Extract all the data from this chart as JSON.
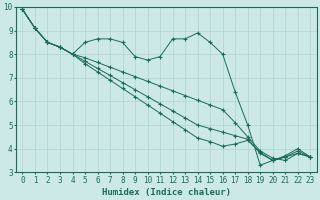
{
  "xlabel": "Humidex (Indice chaleur)",
  "background_color": "#cce9e8",
  "grid_color": "#aed4d2",
  "line_color": "#1a6b5a",
  "xlim": [
    -0.5,
    23.5
  ],
  "ylim": [
    3,
    10
  ],
  "yticks": [
    3,
    4,
    5,
    6,
    7,
    8,
    9,
    10
  ],
  "xticks": [
    0,
    1,
    2,
    3,
    4,
    5,
    6,
    7,
    8,
    9,
    10,
    11,
    12,
    13,
    14,
    15,
    16,
    17,
    18,
    19,
    20,
    21,
    22,
    23
  ],
  "lines": [
    {
      "x": [
        0,
        1,
        2,
        3,
        4,
        5,
        6,
        7,
        8,
        9,
        10,
        11,
        12,
        13,
        14,
        15,
        16,
        17,
        18,
        19,
        20,
        21,
        22,
        23
      ],
      "y": [
        9.9,
        9.1,
        8.5,
        8.3,
        8.0,
        8.5,
        8.65,
        8.65,
        8.5,
        7.9,
        7.75,
        7.9,
        8.65,
        8.65,
        8.9,
        8.5,
        8.0,
        6.4,
        5.0,
        3.3,
        3.5,
        3.7,
        4.0,
        3.65
      ]
    },
    {
      "x": [
        0,
        1,
        2,
        3,
        4,
        5,
        6,
        7,
        8,
        9,
        10,
        11,
        12,
        13,
        14,
        15,
        16,
        17,
        18,
        19,
        20,
        21,
        22,
        23
      ],
      "y": [
        9.9,
        9.1,
        8.5,
        8.3,
        8.0,
        7.85,
        7.65,
        7.45,
        7.25,
        7.05,
        6.85,
        6.65,
        6.45,
        6.25,
        6.05,
        5.85,
        5.65,
        5.1,
        4.5,
        3.9,
        3.6,
        3.5,
        3.8,
        3.65
      ]
    },
    {
      "x": [
        0,
        1,
        2,
        3,
        4,
        5,
        6,
        7,
        8,
        9,
        10,
        11,
        12,
        13,
        14,
        15,
        16,
        17,
        18,
        19,
        20,
        21,
        22,
        23
      ],
      "y": [
        9.9,
        9.1,
        8.5,
        8.3,
        8.0,
        7.7,
        7.4,
        7.1,
        6.8,
        6.5,
        6.2,
        5.9,
        5.6,
        5.3,
        5.0,
        4.85,
        4.7,
        4.55,
        4.4,
        3.8,
        3.5,
        3.65,
        3.8,
        3.65
      ]
    },
    {
      "x": [
        0,
        1,
        2,
        3,
        4,
        5,
        6,
        7,
        8,
        9,
        10,
        11,
        12,
        13,
        14,
        15,
        16,
        17,
        18,
        19,
        20,
        21,
        22,
        23
      ],
      "y": [
        9.9,
        9.1,
        8.5,
        8.3,
        8.0,
        7.6,
        7.25,
        6.9,
        6.55,
        6.2,
        5.85,
        5.5,
        5.15,
        4.8,
        4.45,
        4.3,
        4.1,
        4.2,
        4.35,
        3.85,
        3.5,
        3.65,
        3.9,
        3.65
      ]
    }
  ]
}
